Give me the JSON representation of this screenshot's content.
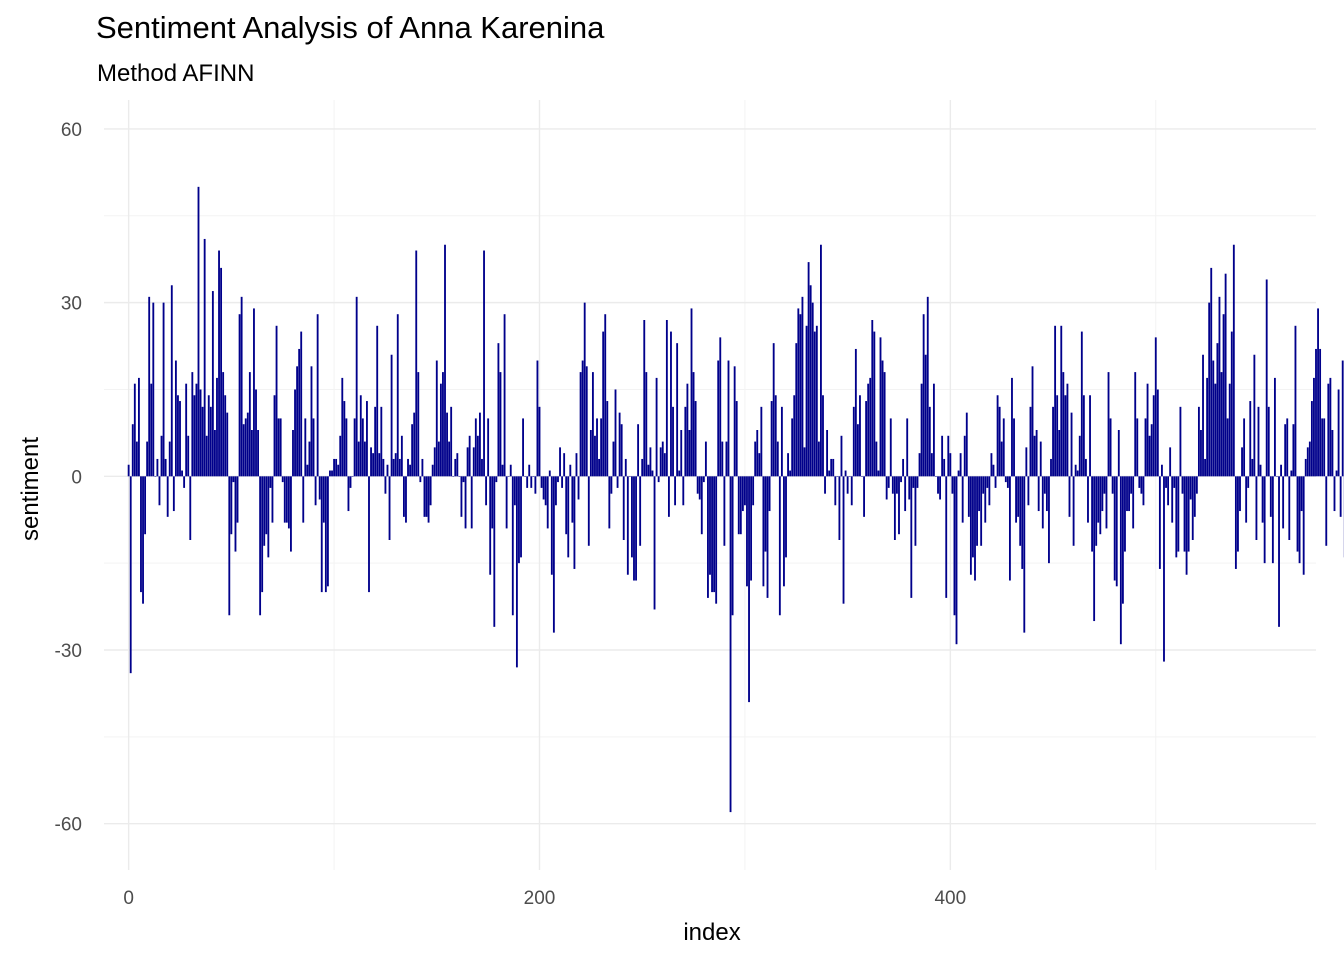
{
  "chart_data": {
    "type": "bar",
    "title": "Sentiment Analysis of Anna Karenina",
    "subtitle": "Method AFINN",
    "xlabel": "index",
    "ylabel": "sentiment",
    "xlim": [
      -12,
      578
    ],
    "ylim": [
      -68,
      65
    ],
    "x_ticks": [
      0,
      200,
      400
    ],
    "x_minor_ticks": [
      100,
      300,
      500
    ],
    "y_ticks": [
      -60,
      -30,
      0,
      30,
      60
    ],
    "y_minor_ticks": [
      -45,
      -15,
      15,
      45
    ],
    "bar_color": "#00008B",
    "grid_major_color": "#EBEBEB",
    "grid_minor_color": "#F3F3F3",
    "series": [
      {
        "name": "sentiment",
        "x_start": 0,
        "values": [
          2,
          -34,
          9,
          16,
          6,
          17,
          -20,
          -22,
          -10,
          6,
          31,
          16,
          30,
          0,
          3,
          -5,
          7,
          30,
          3,
          -7,
          6,
          33,
          -6,
          20,
          14,
          13,
          1,
          -2,
          16,
          7,
          -11,
          18,
          14,
          16,
          50,
          15,
          12,
          41,
          7,
          14,
          12,
          32,
          8,
          17,
          39,
          36,
          18,
          14,
          11,
          -24,
          -10,
          -1,
          -13,
          -8,
          28,
          31,
          9,
          10,
          11,
          18,
          8,
          29,
          15,
          8,
          -24,
          -20,
          -12,
          -10,
          -14,
          -2,
          -8,
          14,
          26,
          10,
          10,
          -1,
          -8,
          -8,
          -9,
          -13,
          8,
          15,
          19,
          22,
          25,
          -8,
          10,
          2,
          6,
          19,
          10,
          -5,
          28,
          -4,
          -20,
          -8,
          -20,
          -19,
          1,
          1,
          3,
          3,
          2,
          7,
          17,
          13,
          10,
          -6,
          -2,
          0,
          10,
          31,
          6,
          14,
          10,
          6,
          13,
          -20,
          5,
          4,
          12,
          26,
          4,
          12,
          3,
          -3,
          2,
          -11,
          21,
          3,
          4,
          28,
          3,
          7,
          -7,
          -8,
          3,
          2,
          9,
          11,
          39,
          18,
          -1,
          3,
          -7,
          -7,
          -8,
          -5,
          2,
          5,
          20,
          6,
          16,
          18,
          40,
          11,
          6,
          12,
          0,
          3,
          4,
          0,
          -7,
          -1,
          -9,
          5,
          7,
          -9,
          5,
          10,
          7,
          11,
          3,
          39,
          -5,
          10,
          -17,
          -9,
          -26,
          -1,
          23,
          18,
          2,
          28,
          -9,
          0,
          2,
          -24,
          -5,
          -33,
          -15,
          -14,
          10,
          0,
          -2,
          2,
          -2,
          0,
          -3,
          20,
          12,
          -2,
          -4,
          -5,
          -9,
          1,
          -17,
          -27,
          -5,
          -1,
          5,
          -2,
          4,
          -10,
          -14,
          2,
          -8,
          -16,
          4,
          -4,
          18,
          20,
          30,
          19,
          -12,
          8,
          18,
          7,
          10,
          3,
          10,
          25,
          28,
          13,
          -9,
          -3,
          6,
          15,
          -2,
          11,
          9,
          -11,
          3,
          -17,
          0,
          -14,
          -18,
          -18,
          9,
          -12,
          3,
          27,
          18,
          2,
          5,
          1,
          -23,
          17,
          -1,
          5,
          6,
          4,
          27,
          -7,
          25,
          12,
          -5,
          23,
          1,
          8,
          -5,
          12,
          16,
          8,
          29,
          18,
          13,
          -3,
          -4,
          -10,
          -1,
          6,
          -21,
          -17,
          -20,
          -20,
          -22,
          20,
          24,
          6,
          -12,
          6,
          20,
          -58,
          -24,
          19,
          13,
          -10,
          -10,
          -6,
          -5,
          -19,
          -39,
          -18,
          -5,
          6,
          8,
          4,
          12,
          -19,
          -13,
          -21,
          -6,
          13,
          23,
          14,
          6,
          -24,
          12,
          -19,
          -14,
          4,
          1,
          10,
          14,
          23,
          29,
          28,
          31,
          5,
          26,
          37,
          33,
          30,
          25,
          26,
          6,
          40,
          14,
          -3,
          8,
          1,
          3,
          3,
          -5,
          0,
          -11,
          7,
          -22,
          1,
          -3,
          0,
          -5,
          12,
          22,
          9,
          14,
          0,
          -7,
          13,
          16,
          17,
          27,
          25,
          6,
          1,
          24,
          20,
          18,
          -4,
          -2,
          10,
          -3,
          -11,
          -3,
          -10,
          -1,
          3,
          -6,
          10,
          -4,
          -21,
          -2,
          -12,
          -2,
          4,
          16,
          28,
          21,
          31,
          12,
          4,
          16,
          0,
          -3,
          -4,
          7,
          3,
          -21,
          7,
          4,
          -3,
          -24,
          -29,
          1,
          4,
          -8,
          7,
          11,
          -7,
          -17,
          -14,
          -18,
          -12,
          -6,
          -12,
          -3,
          -8,
          -2,
          -5,
          4,
          2,
          -2,
          14,
          12,
          6,
          10,
          -1,
          -2,
          -18,
          17,
          10,
          -8,
          -7,
          -12,
          -16,
          -27,
          5,
          -5,
          12,
          19,
          7,
          8,
          -6,
          6,
          -9,
          -3,
          -6,
          -15,
          3,
          12,
          26,
          14,
          8,
          26,
          18,
          14,
          16,
          -7,
          11,
          -12,
          2,
          1,
          7,
          25,
          14,
          3,
          -8,
          14,
          -13,
          -25,
          -12,
          -8,
          -10,
          -6,
          -3,
          -9,
          18,
          10,
          -3,
          -18,
          -19,
          8,
          -29,
          -22,
          -13,
          -6,
          -6,
          -3,
          -9,
          18,
          10,
          -2,
          -3,
          -5,
          10,
          16,
          7,
          9,
          14,
          24,
          15,
          -16,
          2,
          -32,
          -2,
          -5,
          5,
          -8,
          -2,
          -14,
          -13,
          12,
          -3,
          -13,
          -17,
          -13,
          -4,
          -11,
          -7,
          -3,
          12,
          8,
          21,
          3,
          17,
          30,
          36,
          20,
          16,
          23,
          31,
          18,
          28,
          35,
          10,
          16,
          25,
          40,
          -16,
          -13,
          -6,
          5,
          10,
          -8,
          -2,
          13,
          3,
          21,
          -11,
          12,
          2,
          -8,
          -15,
          34,
          12,
          -7,
          -15,
          17,
          0,
          -26,
          2,
          -9,
          9,
          10,
          -11,
          1,
          9,
          26,
          -13,
          -15,
          -6,
          -17,
          3,
          5,
          6,
          13,
          17,
          22,
          29,
          22,
          10,
          10,
          -12,
          16,
          17,
          8,
          -6,
          1,
          15,
          -7,
          20,
          -14,
          10,
          11,
          15,
          24,
          25,
          -22,
          -18,
          22,
          16,
          -12,
          6,
          9,
          -2,
          19,
          15,
          -10,
          -15,
          20,
          -7,
          -17,
          3,
          14,
          -20,
          -23,
          -16,
          -9,
          -5,
          13,
          6,
          -19,
          -21,
          -28,
          -33,
          8,
          5,
          4,
          21,
          23,
          23,
          -20,
          10,
          -5,
          -15,
          -4,
          4,
          22,
          0,
          5,
          13,
          8,
          -11,
          3,
          -7,
          6,
          5,
          -8,
          -12,
          21,
          -25,
          -31,
          -34,
          -11,
          -22,
          15,
          7,
          -9,
          4,
          -3,
          2,
          17,
          -25,
          11,
          -9,
          11,
          28,
          29,
          23,
          21,
          -23,
          10,
          -31,
          -6,
          -3,
          -15,
          3,
          23,
          5,
          9,
          8,
          3,
          9,
          16,
          40,
          -5,
          -14,
          -16,
          22,
          12,
          31,
          -15,
          6,
          2,
          12,
          -11,
          12,
          17,
          32,
          10,
          31,
          -14,
          -13,
          -1,
          8,
          8,
          25,
          21,
          -4,
          -11,
          -7,
          10,
          19,
          -6,
          13,
          11,
          -1,
          15,
          8,
          9,
          9,
          15,
          5,
          -9,
          -5,
          2,
          8,
          3,
          -3,
          -1,
          11,
          -4,
          30,
          12,
          -2,
          8,
          -17,
          31,
          -18,
          27,
          -4,
          19,
          11,
          -17,
          -29,
          10,
          17,
          32,
          19,
          15,
          -23,
          2,
          10,
          20,
          30,
          21,
          6,
          12,
          -8,
          12,
          24,
          8,
          5,
          -10,
          14,
          8,
          16,
          11,
          -3,
          -7,
          13,
          -9,
          6,
          -13,
          -6,
          -3,
          26,
          16,
          21,
          25,
          36,
          18,
          12,
          20,
          42,
          18,
          26,
          31,
          34,
          -21,
          -17,
          -16,
          -16,
          -8,
          -17,
          -9,
          -19,
          -17,
          -21,
          -15,
          -18,
          22,
          -11,
          -15,
          6,
          10,
          17,
          5,
          13,
          -11,
          13,
          -14,
          3,
          23,
          -20,
          -12,
          2,
          4,
          6,
          8,
          14,
          23,
          28,
          16,
          -2,
          -17,
          22,
          13,
          -10,
          6,
          3,
          -4,
          -16,
          17,
          15,
          -6,
          -28,
          27,
          -42,
          -33,
          -14,
          -6,
          -15,
          7,
          13,
          -6,
          19,
          6,
          4,
          -15,
          17,
          16,
          -23,
          -24,
          -8,
          -35,
          9,
          18,
          -11,
          -12,
          -20,
          -27,
          -8,
          23,
          5,
          23
        ]
      }
    ]
  }
}
